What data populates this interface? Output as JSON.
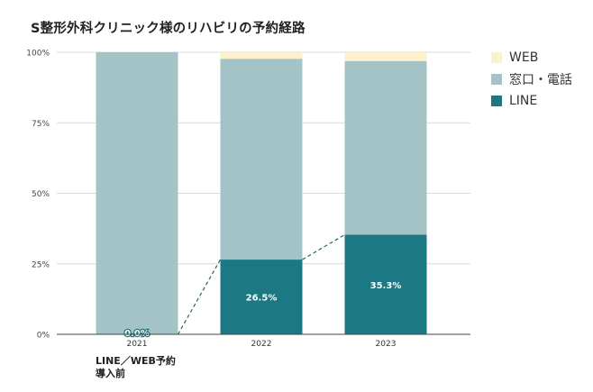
{
  "chart_data": {
    "type": "bar",
    "stacked": true,
    "title": "S整形外科クリニック様のリハビリの予約経路",
    "categories": [
      "2021",
      "2022",
      "2023"
    ],
    "y_ticks": [
      "0%",
      "25%",
      "50%",
      "75%",
      "100%"
    ],
    "ylim": [
      0,
      100
    ],
    "grid": true,
    "legend_position": "right",
    "series": [
      {
        "name": "LINE",
        "color": "#1c7883",
        "values": [
          0.0,
          26.5,
          35.3
        ],
        "labels": [
          "0.0%",
          "26.5%",
          "35.3%"
        ]
      },
      {
        "name": "窓口・電話",
        "color": "#a4c3c6",
        "values": [
          100.0,
          71.2,
          61.6
        ]
      },
      {
        "name": "WEB",
        "color": "#fdf1cd",
        "values": [
          0.0,
          2.3,
          3.1
        ]
      }
    ],
    "trend_line_series": "LINE",
    "annotation": {
      "line1": "LINE／WEB予約",
      "line2": "導入前"
    }
  }
}
